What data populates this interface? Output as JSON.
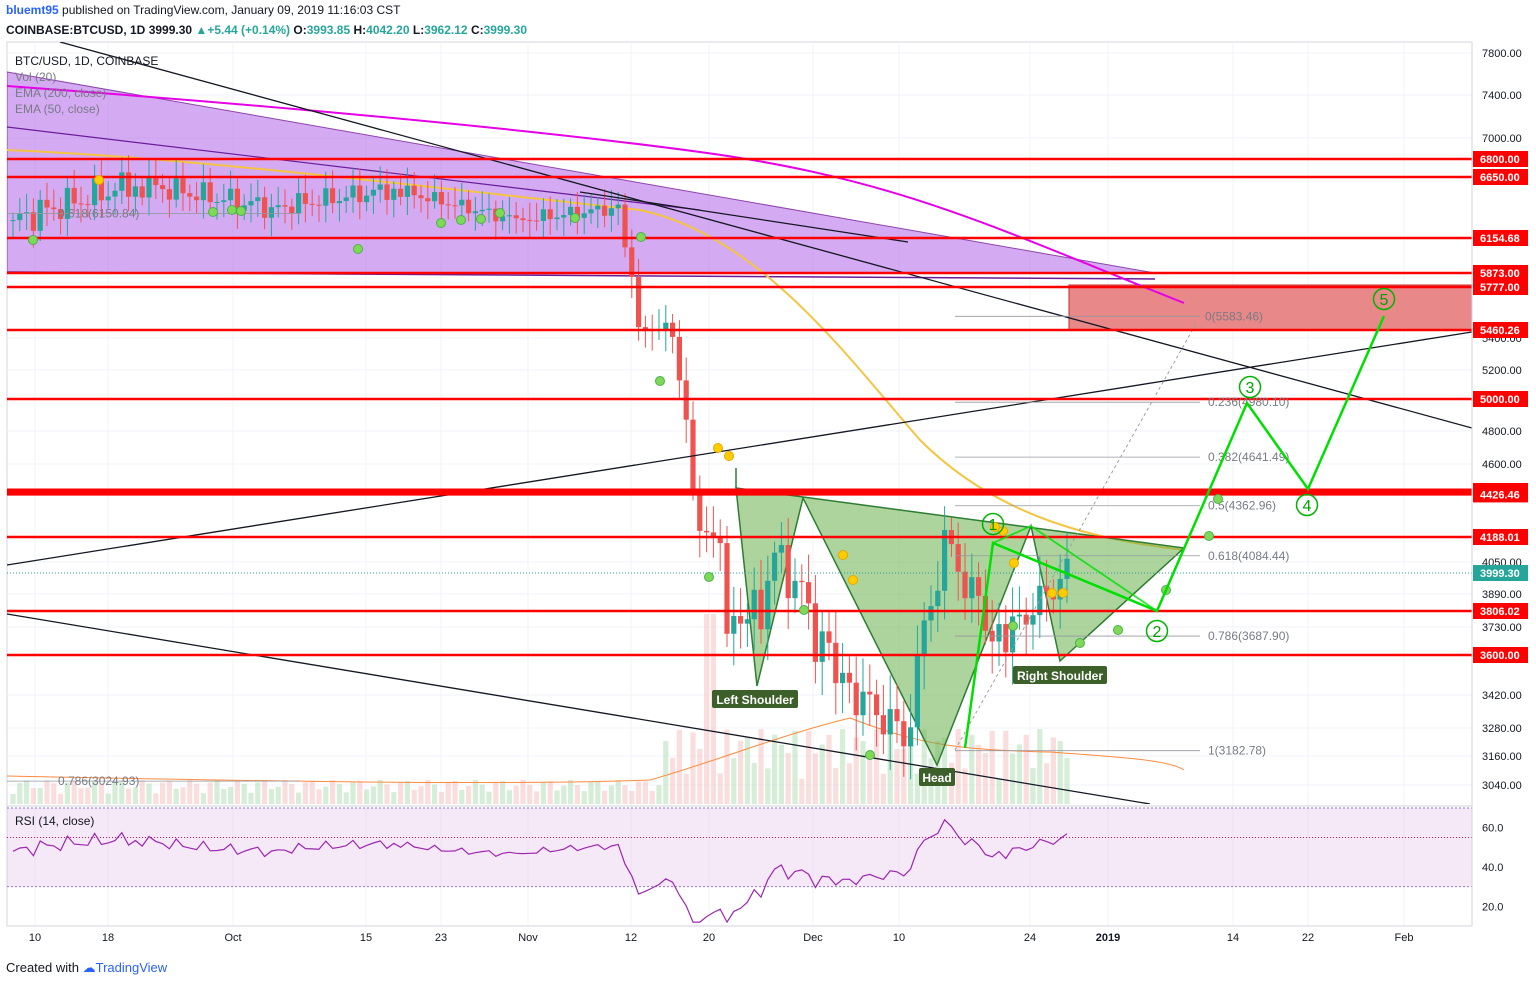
{
  "header": {
    "author": "bluemt95",
    "published_text": "published on TradingView.com, January 09, 2019 11:16:03 CST",
    "symbol": "COINBASE:BTCUSD, 1D",
    "last": "3999.30",
    "change": "+5.44 (+0.14%)",
    "o_label": "O:",
    "o": "3993.85",
    "h_label": "H:",
    "h": "4042.20",
    "l_label": "L:",
    "l": "3962.12",
    "c_label": "C:",
    "c": "3999.30"
  },
  "legend": {
    "title": "BTC/USD, 1D, COINBASE",
    "vol": "Vol (20)",
    "ema200": "EMA (200, close)",
    "ema50": "EMA (50, close)"
  },
  "rsi_label": "RSI (14, close)",
  "footer": {
    "created_with": "Created with",
    "brand": "TradingView"
  },
  "colors": {
    "up": "#26a69a",
    "down": "#ef5350",
    "support": "#ff0000",
    "channel": "#b065e8",
    "pattern": "#6ab04c",
    "wave": "#00e000",
    "ema200": "#e600e6",
    "ema50": "#f5c542",
    "rsi": "#9c27b0"
  },
  "chart_data": [
    {
      "type": "candlestick",
      "title": "BTC/USD, 1D, COINBASE",
      "ylim": [
        2950,
        7850
      ],
      "price_axis_ticks": [
        7800,
        7400,
        7000,
        5400,
        5200,
        4800,
        4600,
        4050,
        3890,
        3730,
        3420,
        3280,
        3160,
        3040
      ],
      "time_axis_labels": [
        "10",
        "18",
        "Oct",
        "15",
        "23",
        "Nov",
        "12",
        "20",
        "Dec",
        "10",
        "24",
        "2019",
        "14",
        "22",
        "Feb"
      ],
      "horizontal_levels": [
        {
          "value": 6800.0,
          "label": "6800.00"
        },
        {
          "value": 6650.0,
          "label": "6650.00"
        },
        {
          "value": 6154.68,
          "label": "6154.68"
        },
        {
          "value": 5873.0,
          "label": "5873.00"
        },
        {
          "value": 5777.0,
          "label": "5777.00"
        },
        {
          "value": 5460.26,
          "label": "5460.26"
        },
        {
          "value": 5000.0,
          "label": "5000.00"
        },
        {
          "value": 4445.51,
          "label": "4445.51"
        },
        {
          "value": 4426.46,
          "label": "4426.46"
        },
        {
          "value": 4188.01,
          "label": "4188.01"
        },
        {
          "value": 3806.02,
          "label": "3806.02"
        },
        {
          "value": 3600.0,
          "label": "3600.00"
        }
      ],
      "last_price": {
        "value": 3999.3,
        "label": "3999.30"
      },
      "fib_levels": [
        {
          "label": "0.236(4980.10)",
          "value": 4980.1
        },
        {
          "label": "0.382(4641.49)",
          "value": 4641.49
        },
        {
          "label": "0.5(4362.96)",
          "value": 4362.96
        },
        {
          "label": "0.618(4084.44)",
          "value": 4084.44
        },
        {
          "label": "0.786(3687.90)",
          "value": 3687.9
        },
        {
          "label": "1(3182.78)",
          "value": 3182.78
        },
        {
          "label": "0(5583.46)",
          "value": 5583.46
        },
        {
          "label": "0.618(6150.84)",
          "value": 6150.84
        },
        {
          "label": "0.786(3024.93)",
          "value": 3024.93
        }
      ],
      "pattern_labels": [
        "Left Shoulder",
        "Head",
        "Right Shoulder"
      ],
      "wave_labels": [
        "1",
        "2",
        "3",
        "4",
        "5"
      ],
      "indicators": [
        "Vol (20)",
        "EMA (200, close)",
        "EMA (50, close)"
      ]
    },
    {
      "type": "line",
      "title": "RSI (14, close)",
      "ylim": [
        10,
        70
      ],
      "ticks": [
        60.0,
        40.0,
        20.0
      ],
      "tick_labels": [
        "60.0",
        "40.0",
        "20.0"
      ],
      "band": [
        30,
        70
      ]
    }
  ]
}
